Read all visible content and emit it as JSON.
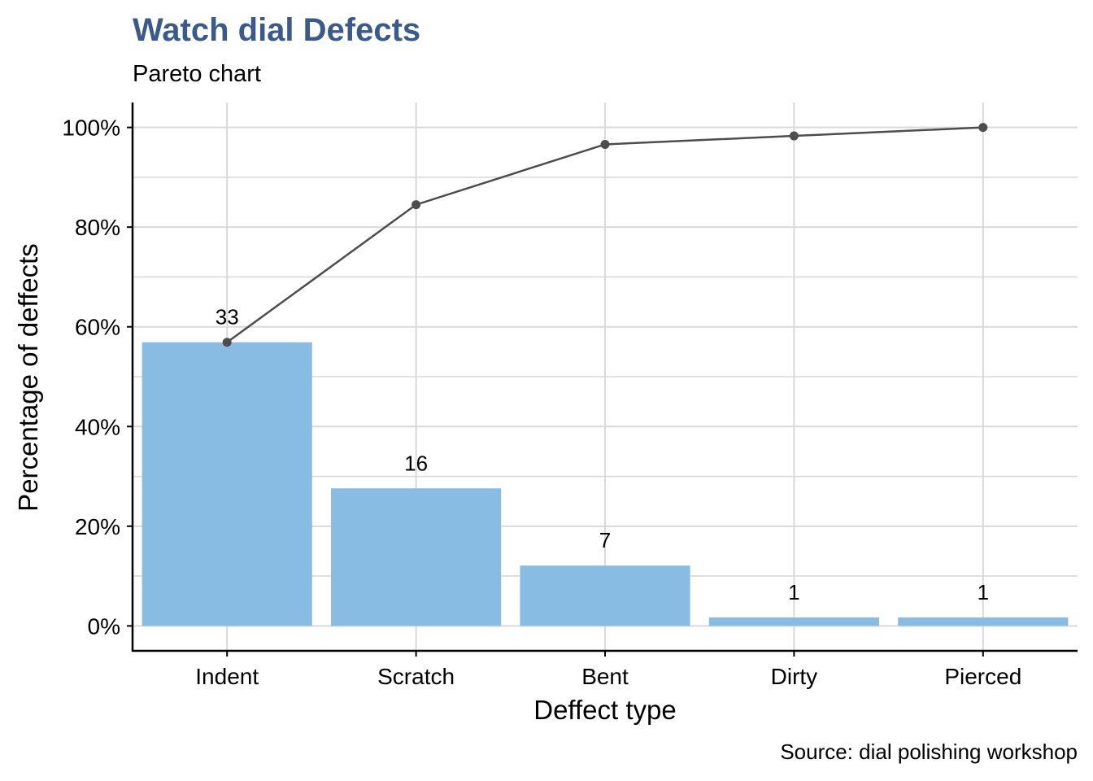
{
  "chart_data": {
    "type": "bar",
    "title": "Watch dial Defects",
    "subtitle": "Pareto chart",
    "caption": "Source: dial polishing workshop",
    "xlabel": "Deffect type",
    "ylabel": "Percentage of deffects",
    "categories": [
      "Indent",
      "Scratch",
      "Bent",
      "Dirty",
      "Pierced"
    ],
    "counts": [
      33,
      16,
      7,
      1,
      1
    ],
    "series": [
      {
        "type": "bar",
        "values": [
          56.9,
          27.6,
          12.1,
          1.7,
          1.7
        ]
      },
      {
        "type": "line",
        "values": [
          56.9,
          84.5,
          96.6,
          98.3,
          100.0
        ]
      }
    ],
    "yticks": [
      "0%",
      "20%",
      "40%",
      "60%",
      "80%",
      "100%"
    ],
    "ylim": [
      -5,
      105
    ],
    "grid": true,
    "colors": {
      "bar": "#89BCE3",
      "line": "#4D4D4D",
      "title": "#3A5A8C",
      "grid": "#D9D9D9"
    }
  }
}
